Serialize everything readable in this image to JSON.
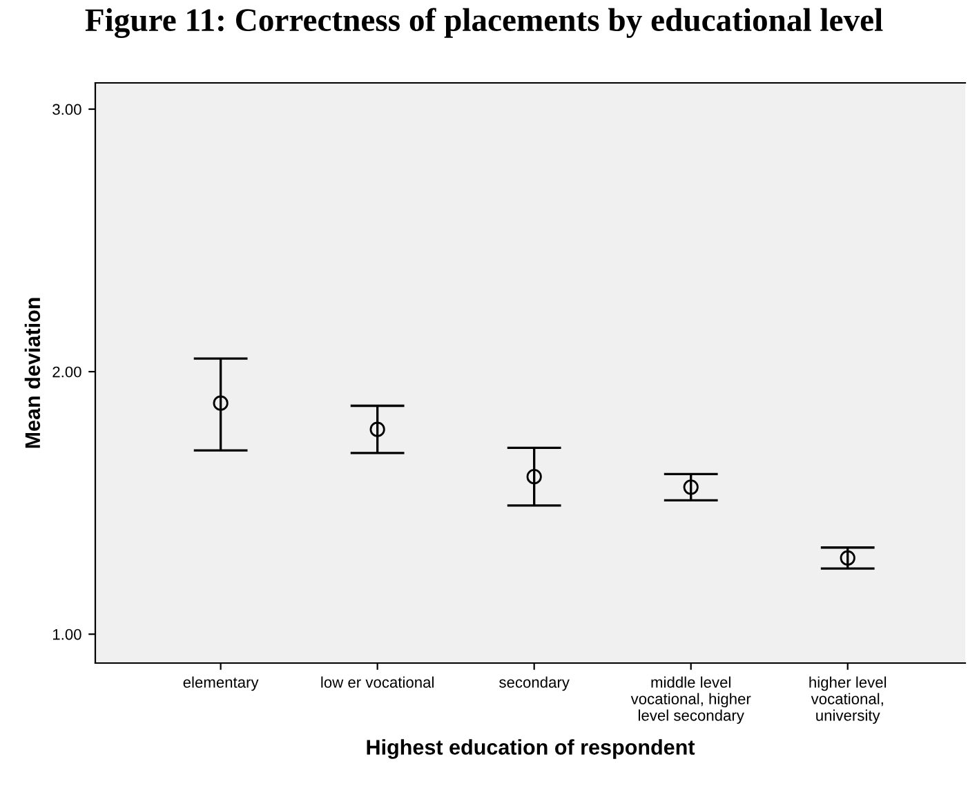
{
  "chart_data": {
    "type": "scatter",
    "title": "Figure 11: Correctness of placements by educational level",
    "xlabel": "Highest education of respondent",
    "ylabel": "Mean deviation",
    "categories": [
      "elementary",
      "low er vocational",
      "secondary",
      "middle level\nvocational, higher\nlevel secondary",
      "higher level\nvocational,\nuniversity"
    ],
    "values": [
      1.88,
      1.78,
      1.6,
      1.56,
      1.29
    ],
    "errors": [
      [
        1.7,
        2.05
      ],
      [
        1.69,
        1.87
      ],
      [
        1.49,
        1.71
      ],
      [
        1.51,
        1.61
      ],
      [
        1.25,
        1.33
      ]
    ],
    "color": "#000000",
    "marker": "circle",
    "ylim": [
      0.89,
      3.1
    ],
    "yticks": [
      {
        "value": 1,
        "label": "1.00"
      },
      {
        "value": 2,
        "label": "2.00"
      },
      {
        "value": 3,
        "label": "3.00"
      }
    ],
    "grid": false
  }
}
